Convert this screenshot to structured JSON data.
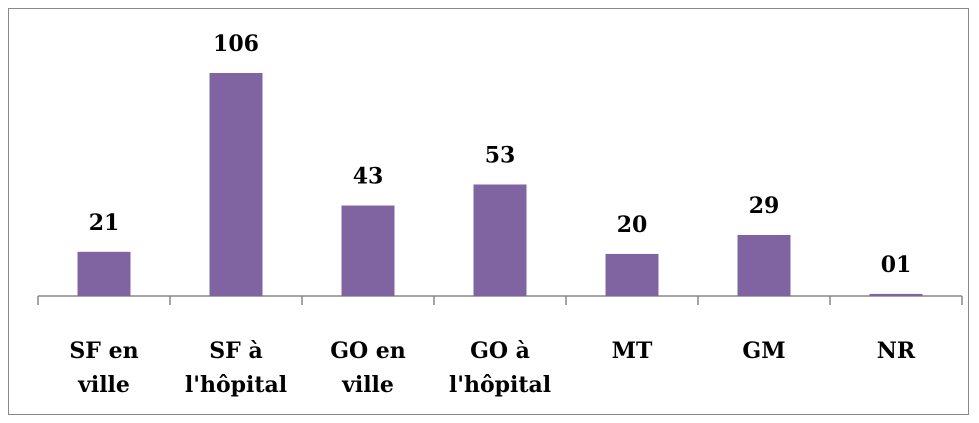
{
  "chart_data": {
    "type": "bar",
    "categories": [
      "SF en ville",
      "SF à l'hôpital",
      "GO en ville",
      "GO à l'hôpital",
      "MT",
      "GM",
      "NR"
    ],
    "values": [
      21,
      106,
      43,
      53,
      20,
      29,
      1
    ],
    "value_labels": [
      "21",
      "106",
      "43",
      "53",
      "20",
      "29",
      "01"
    ],
    "color": "#8064a2"
  }
}
